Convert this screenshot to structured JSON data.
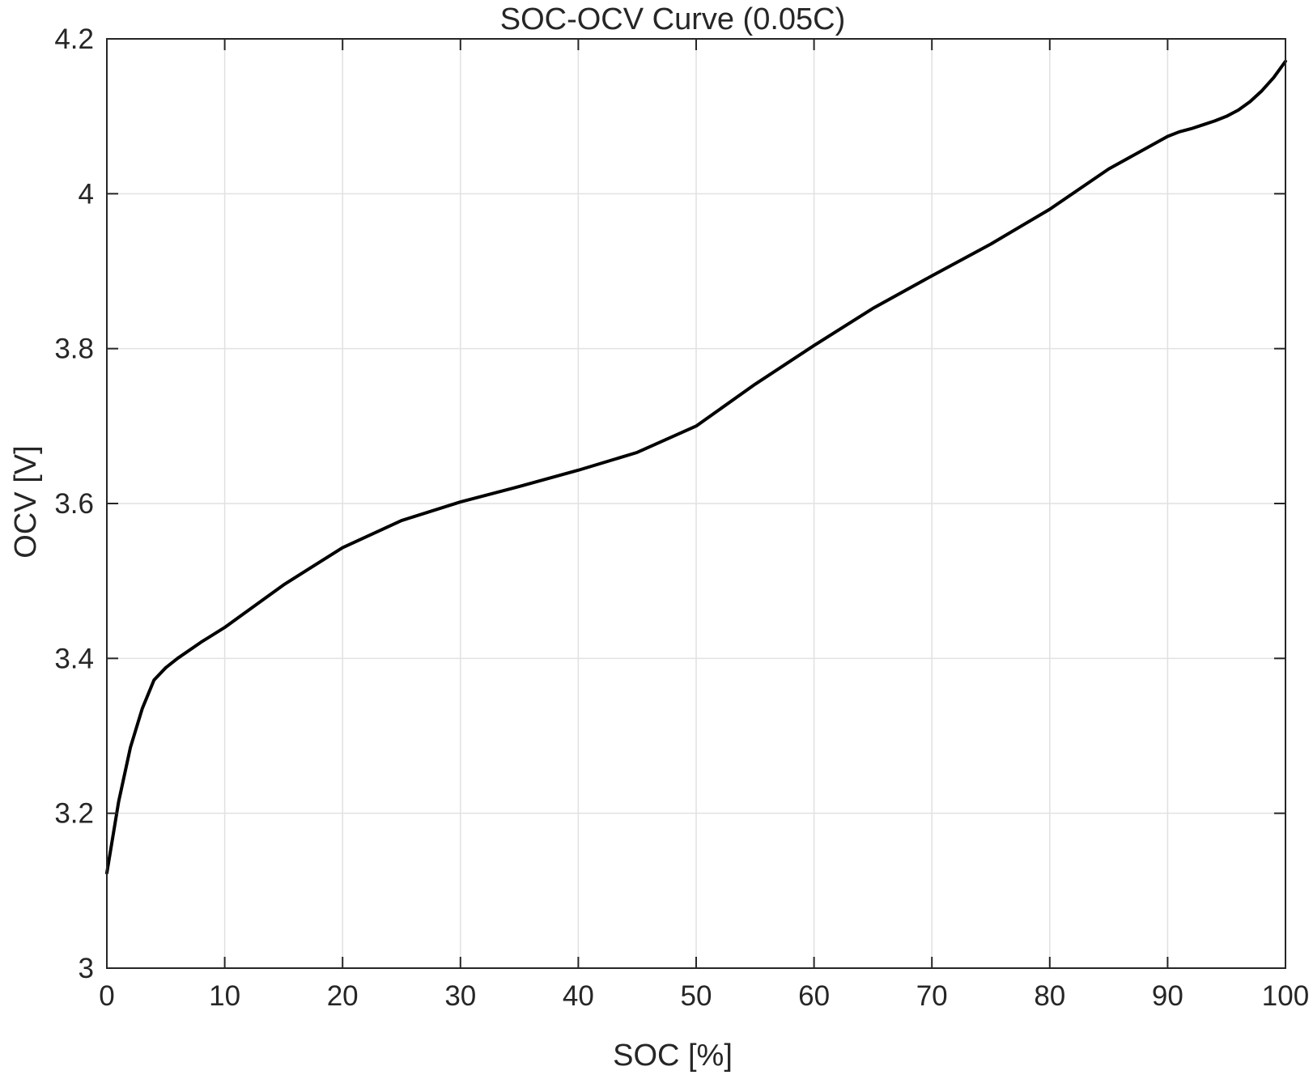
{
  "chart_data": {
    "type": "line",
    "title": "SOC-OCV Curve (0.05C)",
    "xlabel": "SOC  [%]",
    "ylabel": "OCV  [V]",
    "xlim": [
      0,
      100
    ],
    "ylim": [
      3,
      4.2
    ],
    "xticks": [
      0,
      10,
      20,
      30,
      40,
      50,
      60,
      70,
      80,
      90,
      100
    ],
    "xtick_labels": [
      "0",
      "10",
      "20",
      "30",
      "40",
      "50",
      "60",
      "70",
      "80",
      "90",
      "100"
    ],
    "yticks": [
      3,
      3.2,
      3.4,
      3.6,
      3.8,
      4,
      4.2
    ],
    "ytick_labels": [
      "3",
      "3.2",
      "3.4",
      "3.6",
      "3.8",
      "4",
      "4.2"
    ],
    "grid": true,
    "line_color": "#000000",
    "series": [
      {
        "x": [
          0,
          1,
          2,
          3,
          4,
          5,
          6,
          8,
          10,
          15,
          20,
          25,
          30,
          35,
          40,
          45,
          50,
          55,
          60,
          65,
          70,
          75,
          80,
          85,
          90,
          91,
          92,
          93,
          94,
          95,
          96,
          97,
          98,
          99,
          100
        ],
        "y": [
          3.123,
          3.215,
          3.285,
          3.335,
          3.372,
          3.388,
          3.4,
          3.421,
          3.44,
          3.495,
          3.543,
          3.578,
          3.602,
          3.622,
          3.643,
          3.666,
          3.7,
          3.754,
          3.804,
          3.852,
          3.894,
          3.935,
          3.98,
          4.032,
          4.074,
          4.08,
          4.084,
          4.089,
          4.094,
          4.1,
          4.108,
          4.119,
          4.133,
          4.15,
          4.171
        ]
      }
    ]
  }
}
